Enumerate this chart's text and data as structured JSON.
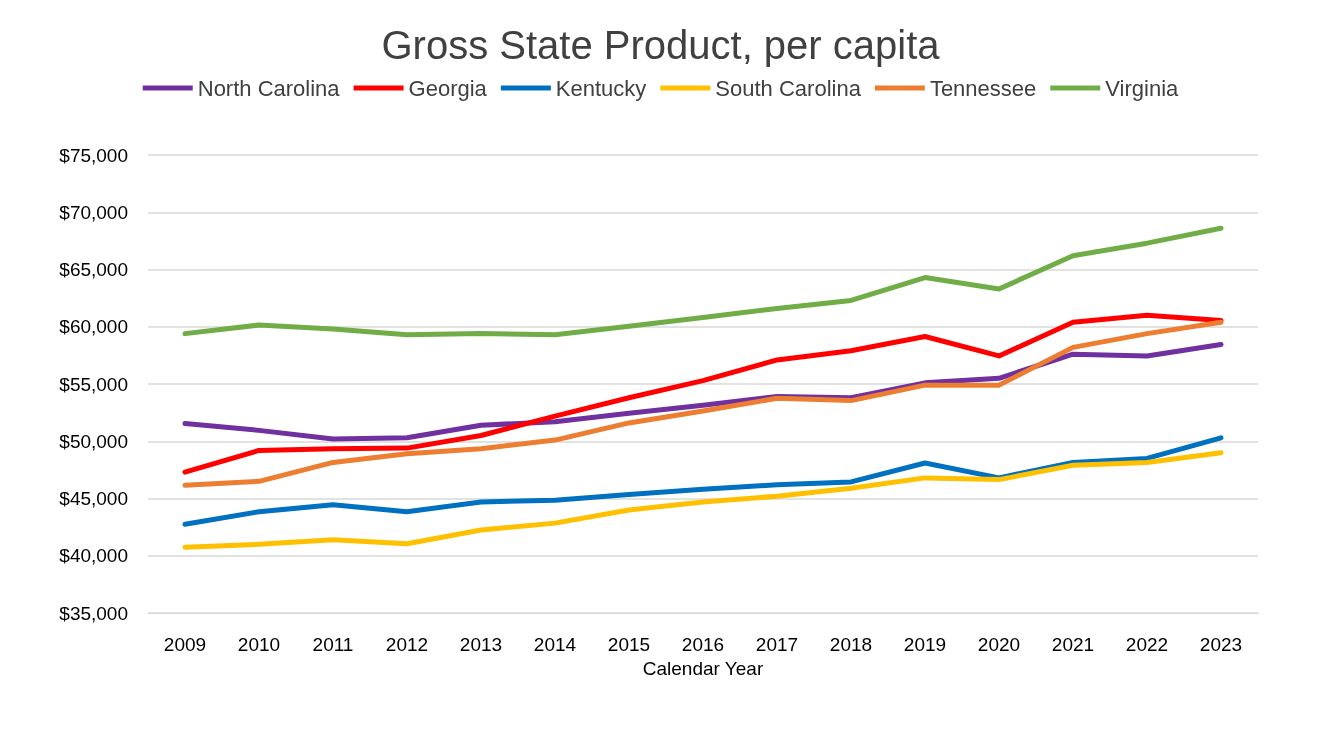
{
  "chart_data": {
    "type": "line",
    "title": "Gross State Product, per capita",
    "xlabel": "Calendar Year",
    "categories": [
      "2009",
      "2010",
      "2011",
      "2012",
      "2013",
      "2014",
      "2015",
      "2016",
      "2017",
      "2018",
      "2019",
      "2020",
      "2021",
      "2022",
      "2023"
    ],
    "series": [
      {
        "name": "North Carolina",
        "color": "#7030a0",
        "values": [
          51550,
          50950,
          50200,
          50300,
          51400,
          51700,
          52450,
          53150,
          53900,
          53800,
          55100,
          55500,
          57600,
          57450,
          58450
        ]
      },
      {
        "name": "Georgia",
        "color": "#ff0000",
        "values": [
          47300,
          49200,
          49350,
          49400,
          50500,
          52200,
          53800,
          55300,
          57100,
          57900,
          59150,
          57450,
          60400,
          61000,
          60550
        ]
      },
      {
        "name": "Kentucky",
        "color": "#0070c0",
        "values": [
          42750,
          43850,
          44450,
          43850,
          44700,
          44850,
          45350,
          45800,
          46200,
          46450,
          48100,
          46800,
          48150,
          48500,
          50300
        ]
      },
      {
        "name": "South Carolina",
        "color": "#ffc000",
        "values": [
          40750,
          41000,
          41400,
          41050,
          42250,
          42850,
          44000,
          44700,
          45200,
          45900,
          46800,
          46650,
          47900,
          48150,
          49000
        ]
      },
      {
        "name": "Tennessee",
        "color": "#ed7d31",
        "values": [
          46150,
          46500,
          48150,
          48900,
          49350,
          50100,
          51600,
          52650,
          53750,
          53550,
          54900,
          54900,
          58200,
          59400,
          60400
        ]
      },
      {
        "name": "Virginia",
        "color": "#70ad47",
        "values": [
          59400,
          60150,
          59800,
          59300,
          59400,
          59300,
          60050,
          60800,
          61600,
          62300,
          64300,
          63300,
          66200,
          67300,
          68600
        ]
      }
    ],
    "ylim": [
      35000,
      75000
    ],
    "yticks": [
      {
        "value": 35000,
        "label": "$35,000"
      },
      {
        "value": 40000,
        "label": "$40,000"
      },
      {
        "value": 45000,
        "label": "$45,000"
      },
      {
        "value": 50000,
        "label": "$50,000"
      },
      {
        "value": 55000,
        "label": "$55,000"
      },
      {
        "value": 60000,
        "label": "$60,000"
      },
      {
        "value": 65000,
        "label": "$65,000"
      },
      {
        "value": 70000,
        "label": "$70,000"
      },
      {
        "value": 75000,
        "label": "$75,000"
      }
    ],
    "grid": "y",
    "legend": "top",
    "marker": "none",
    "line_style": "solid"
  }
}
